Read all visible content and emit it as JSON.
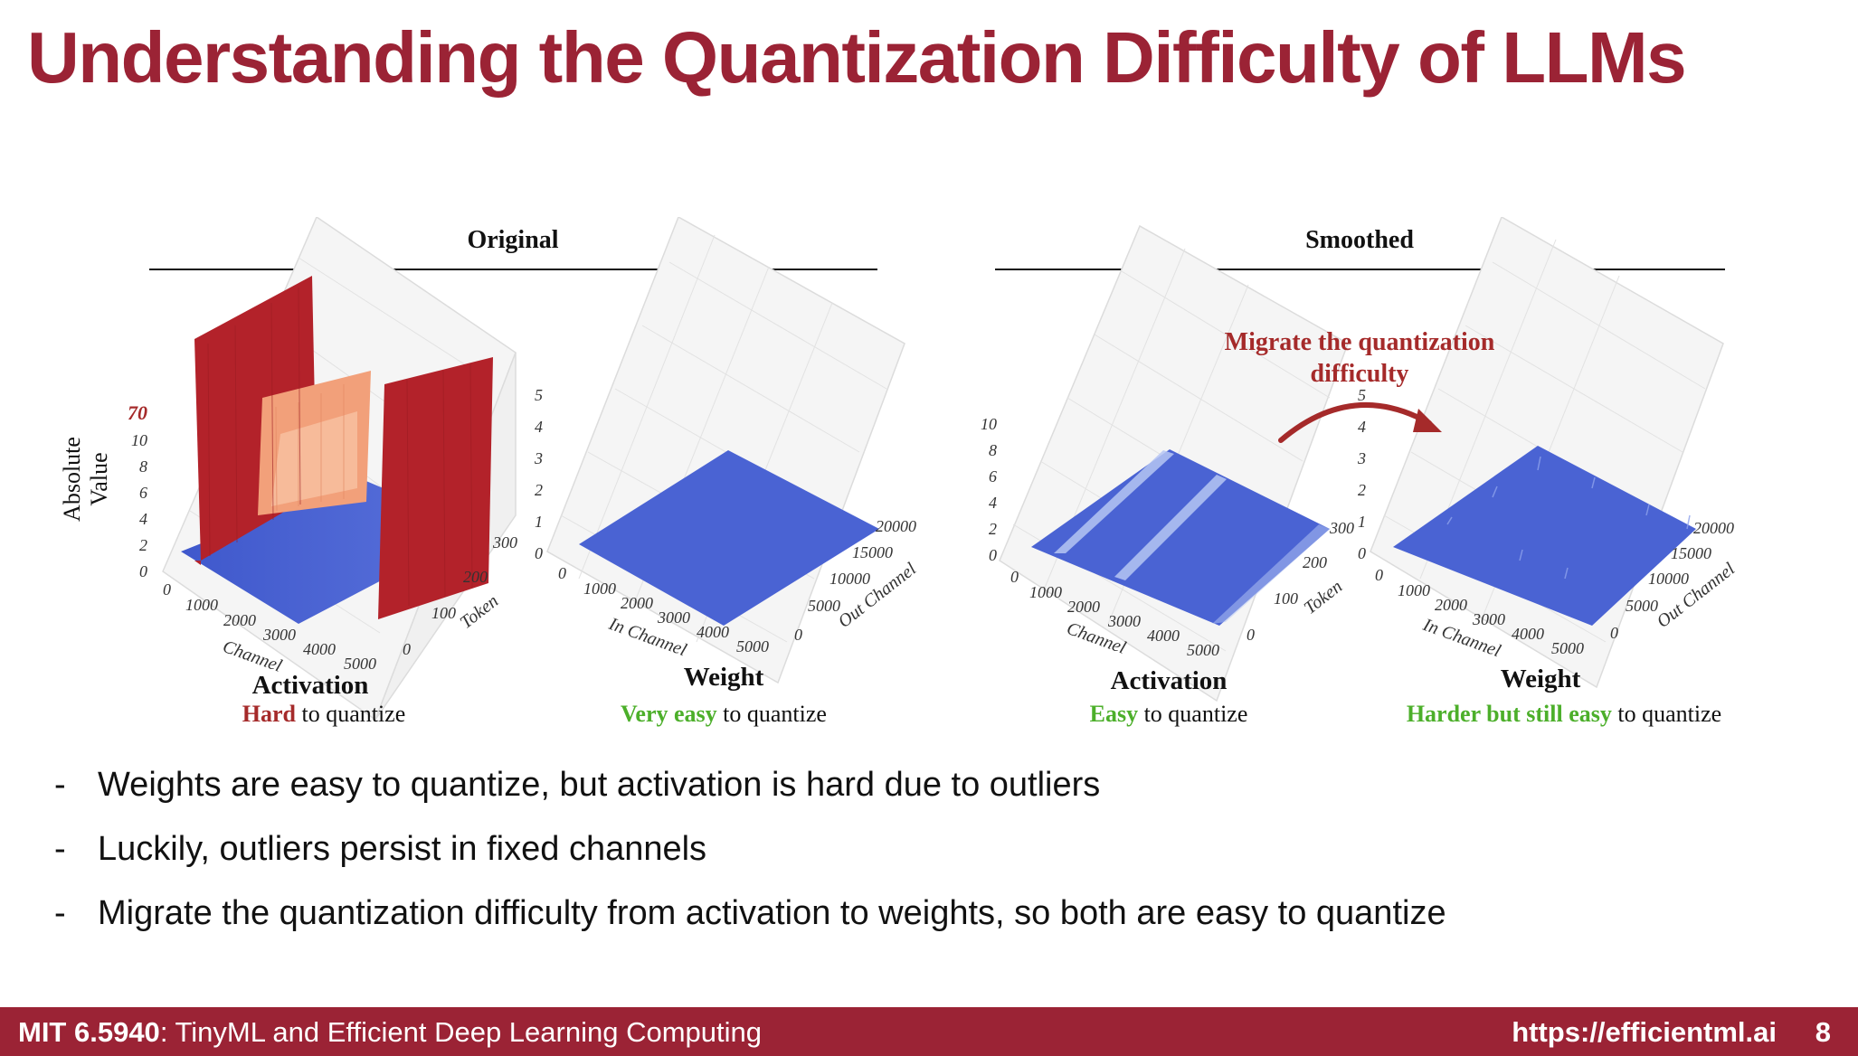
{
  "slide": {
    "title": "Understanding the Quantization Difficulty of LLMs",
    "page_number": "8"
  },
  "figure": {
    "original": {
      "group_title": "Original",
      "activation": {
        "label": "Activation",
        "caption_highlight": "Hard",
        "caption_rest": " to quantize",
        "highlight_color": "#a52a2a",
        "z_label": "Absolute Value",
        "z_label_line1": "Absolute",
        "z_label_line2": "Value",
        "z_ticks": [
          "0",
          "2",
          "4",
          "6",
          "8",
          "10",
          "70"
        ],
        "x_label": "Channel",
        "x_ticks": [
          "0",
          "1000",
          "2000",
          "3000",
          "4000",
          "5000"
        ],
        "y_label": "Token",
        "y_ticks": [
          "0",
          "100",
          "200",
          "300"
        ]
      },
      "weight": {
        "label": "Weight",
        "caption_highlight": "Very easy",
        "caption_rest": " to quantize",
        "highlight_color": "#4caf2a",
        "z_ticks": [
          "0",
          "1",
          "2",
          "3",
          "4",
          "5"
        ],
        "x_label": "In Channel",
        "x_ticks": [
          "0",
          "1000",
          "2000",
          "3000",
          "4000",
          "5000"
        ],
        "y_label": "Out Channel",
        "y_ticks": [
          "0",
          "5000",
          "10000",
          "15000",
          "20000"
        ]
      }
    },
    "smoothed": {
      "group_title": "Smoothed",
      "activation": {
        "label": "Activation",
        "caption_highlight": "Easy",
        "caption_rest": " to quantize",
        "highlight_color": "#4caf2a",
        "z_ticks": [
          "0",
          "2",
          "4",
          "6",
          "8",
          "10"
        ],
        "x_label": "Channel",
        "x_ticks": [
          "0",
          "1000",
          "2000",
          "3000",
          "4000",
          "5000"
        ],
        "y_label": "Token",
        "y_ticks": [
          "0",
          "100",
          "200",
          "300"
        ]
      },
      "weight": {
        "label": "Weight",
        "caption_highlight": "Harder but still easy",
        "caption_rest": " to quantize",
        "highlight_color": "#4caf2a",
        "z_ticks": [
          "0",
          "1",
          "2",
          "3",
          "4",
          "5"
        ],
        "x_label": "In Channel",
        "x_ticks": [
          "0",
          "1000",
          "2000",
          "3000",
          "4000",
          "5000"
        ],
        "y_label": "Out Channel",
        "y_ticks": [
          "0",
          "5000",
          "10000",
          "15000",
          "20000"
        ]
      }
    },
    "migrate_annotation": {
      "line1": "Migrate the quantization",
      "line2": "difficulty",
      "color": "#a52a2a"
    },
    "colors": {
      "surface_blue": "#4a63d3",
      "outlier_red": "#b3222a",
      "outlier_orange": "#f2a07a"
    }
  },
  "bullets": [
    "Weights are easy to quantize, but activation is hard due to outliers",
    "Luckily, outliers persist in fixed channels",
    "Migrate the quantization difficulty from activation to weights, so both are easy to quantize"
  ],
  "bullet_marker": "-",
  "footer": {
    "course_bold": "MIT 6.5940",
    "course_rest": ": TinyML and Efficient Deep Learning Computing",
    "url": "https://efficientml.ai"
  }
}
